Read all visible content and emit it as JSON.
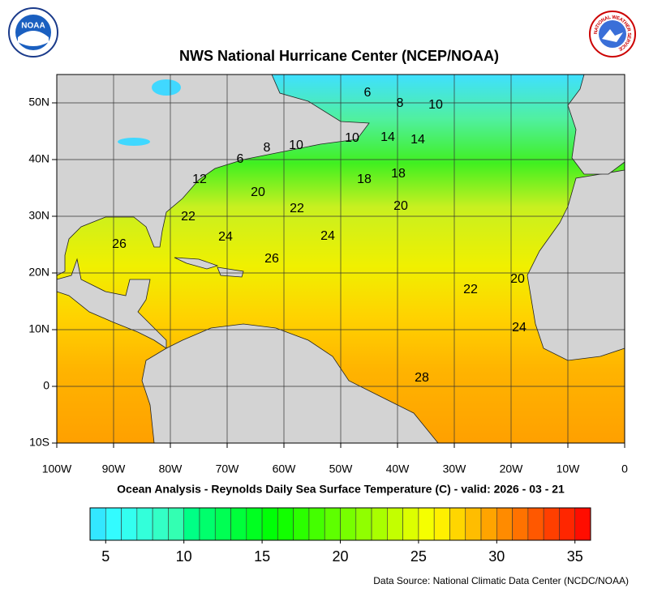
{
  "header": {
    "title": "NWS National Hurricane Center (NCEP/NOAA)"
  },
  "logos": {
    "left": "NOAA",
    "right": "NATIONAL WEATHER SERVICE"
  },
  "map": {
    "lon_ticks": [
      {
        "value": -100,
        "label": "100W"
      },
      {
        "value": -90,
        "label": "90W"
      },
      {
        "value": -80,
        "label": "80W"
      },
      {
        "value": -70,
        "label": "70W"
      },
      {
        "value": -60,
        "label": "60W"
      },
      {
        "value": -50,
        "label": "50W"
      },
      {
        "value": -40,
        "label": "40W"
      },
      {
        "value": -30,
        "label": "30W"
      },
      {
        "value": -20,
        "label": "20W"
      },
      {
        "value": -10,
        "label": "10W"
      },
      0
    ],
    "lat_ticks": [
      {
        "value": 50,
        "label": "50N"
      },
      {
        "value": 40,
        "label": "40N"
      },
      {
        "value": 30,
        "label": "30N"
      },
      {
        "value": 20,
        "label": "20N"
      },
      {
        "value": 10,
        "label": "10N"
      },
      0,
      {
        "value": -10,
        "label": "10S"
      }
    ],
    "contour_labels": [
      6,
      8,
      10,
      10,
      14,
      14,
      10,
      8,
      6,
      12,
      18,
      18,
      20,
      20,
      22,
      22,
      24,
      24,
      26,
      26,
      22,
      20,
      24,
      28
    ]
  },
  "caption": "Ocean Analysis - Reynolds Daily Sea Surface Temperature (C) - valid: 2026 - 03 - 21",
  "colorbar": {
    "range": [
      4,
      36
    ],
    "ticks": [
      5,
      10,
      15,
      20,
      25,
      30,
      35
    ]
  },
  "source": "Data Source: National Climatic Data Center (NCDC/NOAA)"
}
